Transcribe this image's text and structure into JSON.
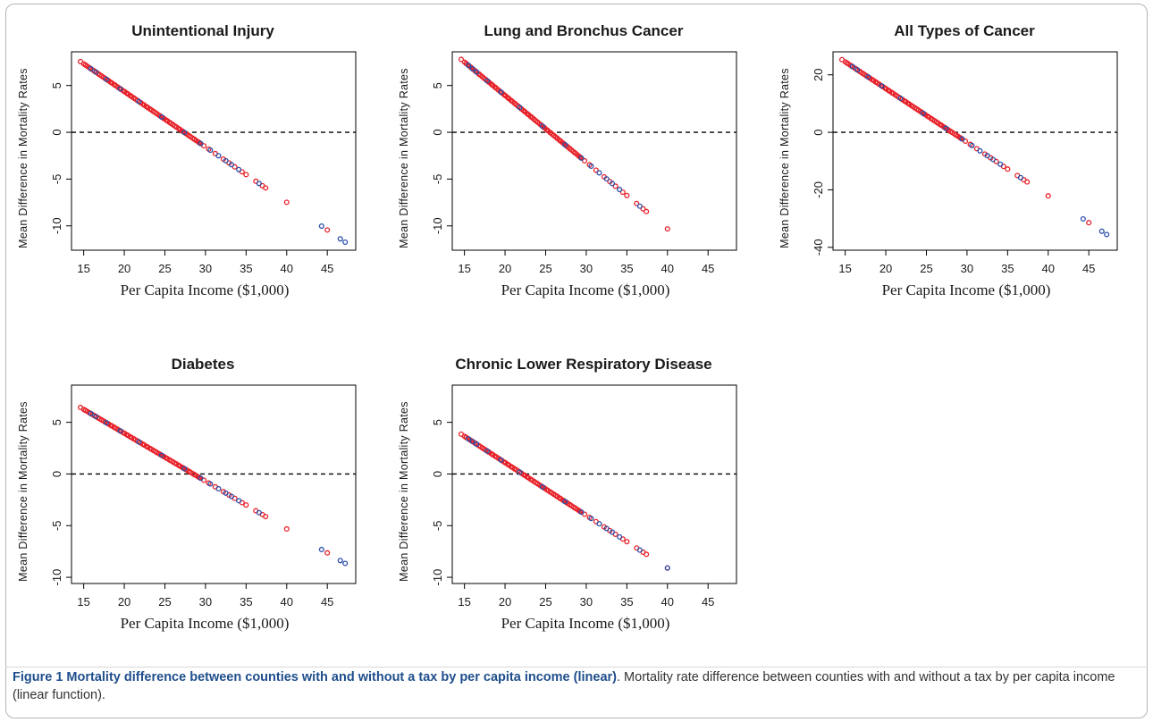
{
  "caption": {
    "bold": "Figure 1 Mortality difference between counties with and without a tax by per capita income (linear)",
    "text": ". Mortality rate difference between counties with and without a tax by per capita income (linear function)."
  },
  "colors": {
    "series_red": "#e8222a",
    "series_blue": "#2a4fa8",
    "reference_line": "#000000"
  },
  "chart_data": [
    {
      "type": "scatter",
      "title": "Unintentional Injury",
      "xlabel": "Per Capita Income ($1,000)",
      "ylabel": "Mean Difference in Mortality Rates",
      "xticks": [
        15,
        20,
        25,
        30,
        35,
        40,
        45
      ],
      "yticks": [
        5,
        0,
        -5,
        -10
      ],
      "xlim": [
        13.5,
        48.5
      ],
      "ylim": [
        -12.6,
        8.6
      ],
      "reference_line": {
        "y": 0,
        "style": "dashed"
      },
      "fit": {
        "slope": -0.592,
        "intercept": 16.2
      },
      "red_x": [
        14.6,
        15.2,
        15.8,
        16.3,
        16.8,
        17.2,
        17.6,
        18.0,
        18.4,
        18.8,
        19.2,
        19.6,
        20.0,
        20.4,
        20.8,
        21.2,
        21.6,
        22.0,
        22.4,
        22.8,
        23.2,
        23.6,
        24.0,
        24.4,
        24.8,
        25.2,
        25.6,
        26.0,
        26.4,
        26.8,
        27.2,
        27.6,
        28.0,
        28.6,
        29.2,
        29.8,
        30.4,
        31.2,
        32.2,
        32.9,
        33.6,
        34.5,
        35.0,
        36.2,
        37.0,
        37.4,
        40.0,
        45.0
      ],
      "blue_x": [
        15.9,
        16.5,
        17.8,
        19.5,
        21.8,
        24.6,
        27.4,
        29.4,
        30.6,
        31.6,
        32.5,
        33.2,
        34.1,
        36.6,
        44.3,
        46.6,
        47.2
      ]
    },
    {
      "type": "scatter",
      "title": "Lung and Bronchus Cancer",
      "xlabel": "Per Capita Income ($1,000)",
      "ylabel": "Mean Difference in Mortality Rates",
      "xticks": [
        15,
        20,
        25,
        30,
        35,
        40,
        45
      ],
      "yticks": [
        5,
        0,
        -5,
        -10
      ],
      "xlim": [
        13.5,
        48.5
      ],
      "ylim": [
        -12.6,
        8.6
      ],
      "reference_line": {
        "y": 0,
        "style": "dashed"
      },
      "fit": {
        "slope": -0.713,
        "intercept": 18.2
      },
      "red_x": [
        14.6,
        15.2,
        15.8,
        16.3,
        16.8,
        17.2,
        17.6,
        18.0,
        18.4,
        18.8,
        19.2,
        19.6,
        20.0,
        20.4,
        20.8,
        21.2,
        21.6,
        22.0,
        22.4,
        22.8,
        23.2,
        23.6,
        24.0,
        24.4,
        24.8,
        25.2,
        25.6,
        26.0,
        26.4,
        26.8,
        27.2,
        27.6,
        28.0,
        28.6,
        29.2,
        29.8,
        30.4,
        31.2,
        32.2,
        32.9,
        33.6,
        34.5,
        35.0,
        36.2,
        37.0,
        37.4,
        40.0
      ],
      "blue_x": [
        15.5,
        16.0,
        16.5,
        17.8,
        19.5,
        21.8,
        24.6,
        27.4,
        29.4,
        30.6,
        31.6,
        32.5,
        33.2,
        34.1,
        36.6
      ]
    },
    {
      "type": "scatter",
      "title": "All Types of Cancer",
      "xlabel": "Per Capita Income ($1,000)",
      "ylabel": "Mean Difference in Mortality Rates",
      "xticks": [
        15,
        20,
        25,
        30,
        35,
        40,
        45
      ],
      "yticks": [
        20,
        0,
        -20,
        -40
      ],
      "xlim": [
        13.5,
        48.5
      ],
      "ylim": [
        -41,
        28
      ],
      "reference_line": {
        "y": 0,
        "style": "dashed"
      },
      "fit": {
        "slope": -1.865,
        "intercept": 52.5
      },
      "red_x": [
        14.6,
        15.2,
        15.8,
        16.3,
        16.8,
        17.2,
        17.6,
        18.0,
        18.4,
        18.8,
        19.2,
        19.6,
        20.0,
        20.4,
        20.8,
        21.2,
        21.6,
        22.0,
        22.4,
        22.8,
        23.2,
        23.6,
        24.0,
        24.4,
        24.8,
        25.2,
        25.6,
        26.0,
        26.4,
        26.8,
        27.2,
        27.6,
        28.0,
        28.6,
        29.2,
        29.8,
        30.4,
        31.2,
        32.2,
        32.9,
        33.6,
        34.5,
        35.0,
        36.2,
        37.0,
        37.4,
        40.0,
        45.0
      ],
      "blue_x": [
        15.9,
        16.5,
        17.8,
        19.5,
        21.8,
        24.6,
        27.4,
        29.4,
        30.6,
        31.6,
        32.5,
        33.2,
        34.1,
        36.6,
        44.3,
        46.6,
        47.2
      ]
    },
    {
      "type": "scatter",
      "title": "Diabetes",
      "xlabel": "Per Capita Income ($1,000)",
      "ylabel": "Mean Difference in Mortality Rates",
      "xticks": [
        15,
        20,
        25,
        30,
        35,
        40,
        45
      ],
      "yticks": [
        5,
        0,
        -5,
        -10
      ],
      "xlim": [
        13.5,
        48.5
      ],
      "ylim": [
        -10.6,
        8.6
      ],
      "reference_line": {
        "y": 0,
        "style": "dashed"
      },
      "fit": {
        "slope": -0.463,
        "intercept": 13.2
      },
      "red_x": [
        14.6,
        15.2,
        15.8,
        16.3,
        16.8,
        17.2,
        17.6,
        18.0,
        18.4,
        18.8,
        19.2,
        19.6,
        20.0,
        20.4,
        20.8,
        21.2,
        21.6,
        22.0,
        22.4,
        22.8,
        23.2,
        23.6,
        24.0,
        24.4,
        24.8,
        25.2,
        25.6,
        26.0,
        26.4,
        26.8,
        27.2,
        27.6,
        28.0,
        28.6,
        29.2,
        29.8,
        30.4,
        31.2,
        32.2,
        32.9,
        33.6,
        34.5,
        35.0,
        36.2,
        37.0,
        37.4,
        40.0,
        45.0
      ],
      "blue_x": [
        15.9,
        16.5,
        17.8,
        19.5,
        21.8,
        24.6,
        27.4,
        29.4,
        30.6,
        31.6,
        32.5,
        33.2,
        34.1,
        36.6,
        44.3,
        46.6,
        47.2
      ]
    },
    {
      "type": "scatter",
      "title": "Chronic Lower Respiratory Disease",
      "xlabel": "Per Capita Income ($1,000)",
      "ylabel": "Mean Difference in Mortality Rates",
      "xticks": [
        15,
        20,
        25,
        30,
        35,
        40,
        45
      ],
      "yticks": [
        5,
        0,
        -5,
        -10
      ],
      "xlim": [
        13.5,
        48.5
      ],
      "ylim": [
        -10.6,
        8.6
      ],
      "reference_line": {
        "y": 0,
        "style": "dashed"
      },
      "fit": {
        "slope": -0.51,
        "intercept": 11.3
      },
      "red_x": [
        14.6,
        15.2,
        15.8,
        16.3,
        16.8,
        17.2,
        17.6,
        18.0,
        18.4,
        18.8,
        19.2,
        19.6,
        20.0,
        20.4,
        20.8,
        21.2,
        21.6,
        22.0,
        22.4,
        22.8,
        23.2,
        23.6,
        24.0,
        24.4,
        24.8,
        25.2,
        25.6,
        26.0,
        26.4,
        26.8,
        27.2,
        27.6,
        28.0,
        28.6,
        29.2,
        29.8,
        30.4,
        31.2,
        32.2,
        32.9,
        33.6,
        34.5,
        35.0,
        36.2,
        37.0,
        37.4,
        40.0
      ],
      "blue_x": [
        15.5,
        16.0,
        16.5,
        17.8,
        19.5,
        21.8,
        24.6,
        27.4,
        29.4,
        30.6,
        31.6,
        32.5,
        33.2,
        34.1,
        36.6,
        40.0
      ]
    }
  ]
}
